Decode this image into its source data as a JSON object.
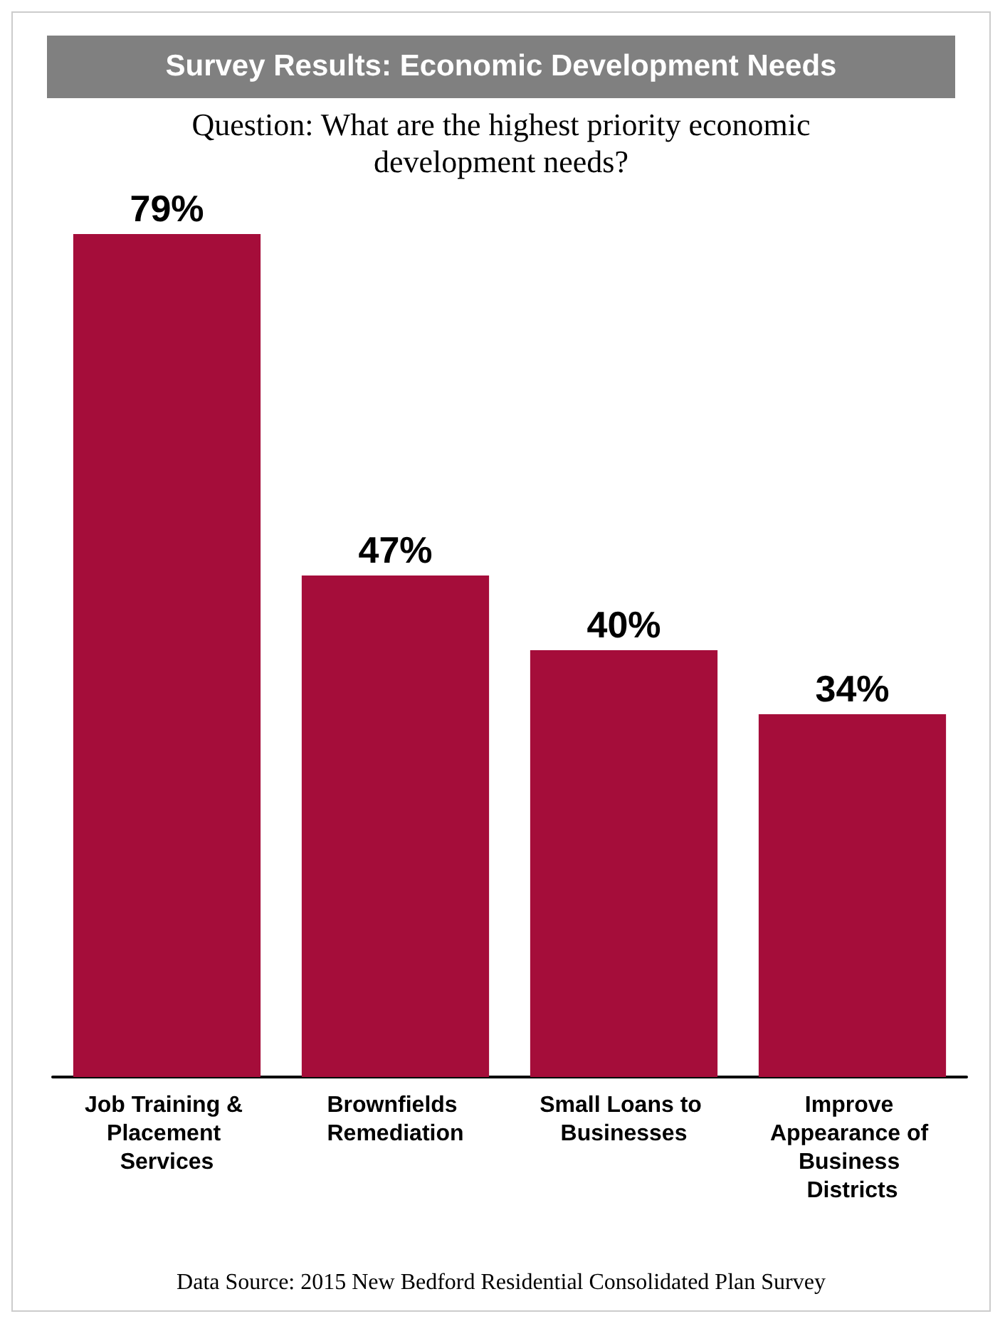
{
  "chart_data": {
    "type": "bar",
    "title": "Survey Results: Economic Development Needs",
    "subtitle": "Question: What are the highest priority economic development needs?",
    "categories": [
      "Job Training & Placement Services",
      "Brownfields Remediation",
      "Small Loans to Businesses",
      "Improve Appearance of Business Districts"
    ],
    "values": [
      79,
      47,
      40,
      34
    ],
    "value_labels": [
      "79%",
      "47%",
      "40%",
      "34%"
    ],
    "color": "#a50d3a",
    "annotations": [
      "Data Source: 2015 New Bedford Residential Consolidated Plan Survey"
    ]
  }
}
